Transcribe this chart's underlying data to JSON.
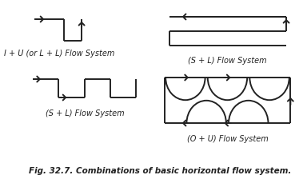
{
  "title": "Fig. 32.7. Combinations of basic horizontal flow system.",
  "background": "#ffffff",
  "line_color": "#222222",
  "line_width": 1.4,
  "labels": {
    "top_left": "I + U (or L + L) Flow System",
    "top_right": "(S + L) Flow System",
    "bottom_left": "(S + L) Flow System",
    "bottom_right": "(O + U) Flow System"
  },
  "label_fontsize": 7.0,
  "title_fontsize": 7.5
}
